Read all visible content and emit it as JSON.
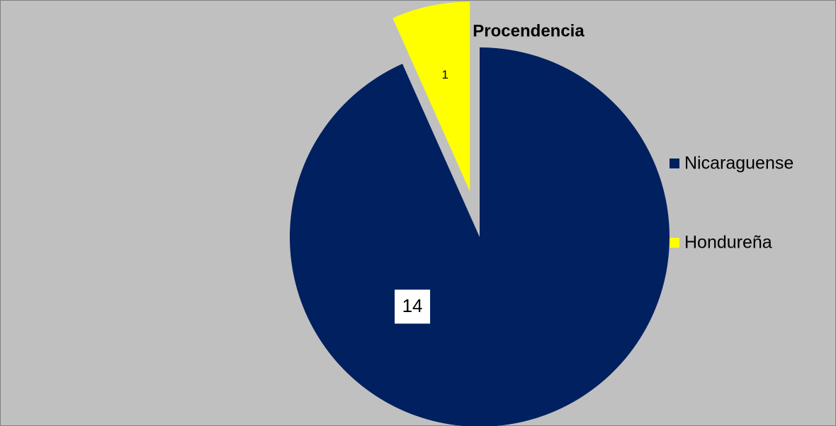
{
  "chart_data": {
    "type": "pie",
    "title": "Procendencia",
    "categories": [
      "Nicaraguense",
      "Hondureña"
    ],
    "values": [
      14,
      1
    ],
    "colors": [
      "#002060",
      "#ffff00"
    ],
    "legend": "right"
  }
}
